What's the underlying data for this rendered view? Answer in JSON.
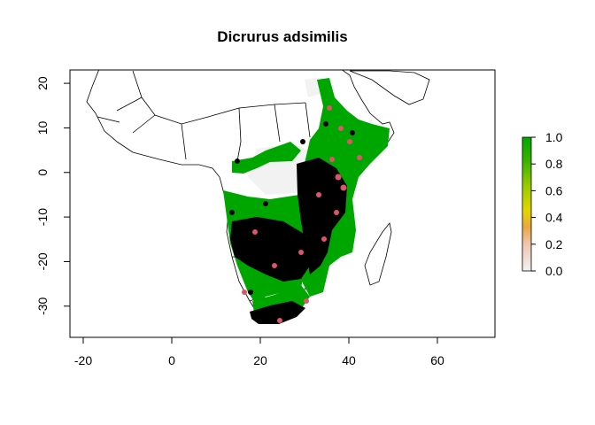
{
  "chart_data": {
    "type": "map",
    "title": "Dicrurus adsimilis",
    "xlim": [
      -23,
      73
    ],
    "ylim": [
      -37,
      23
    ],
    "x_ticks": [
      -20,
      0,
      20,
      40,
      60
    ],
    "y_ticks": [
      -30,
      -20,
      -10,
      0,
      10,
      20
    ],
    "legend": {
      "placement": "right",
      "ticks": [
        "0.0",
        "0.2",
        "0.4",
        "0.6",
        "0.8",
        "1.0"
      ],
      "range": [
        0,
        1
      ],
      "colors": [
        "#f2f2f2",
        "#efc5b0",
        "#e8a840",
        "#e3d600",
        "#9fcc00",
        "#3bb300",
        "#00a600"
      ]
    },
    "colors": {
      "suitable": "#00a600",
      "unsuitable": "#f2f2f2",
      "record_points": "#000000",
      "test_points": "#df536b",
      "borders": "#000000"
    }
  }
}
